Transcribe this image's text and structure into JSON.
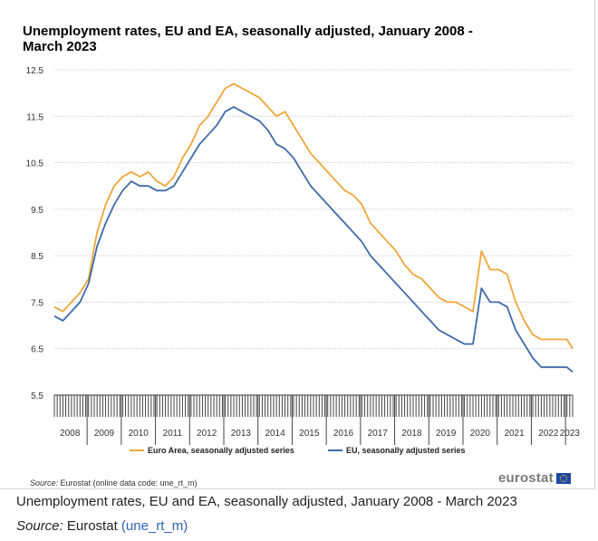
{
  "figure": {
    "title": "Unemployment rates, EU and EA, seasonally adjusted, January 2008 - March 2023",
    "source_label": "Source:",
    "source_text": "Eurostat (online data code: une_rt_m)",
    "logo_text": "eurostat",
    "flag_icon": "eu-flag-icon"
  },
  "caption": {
    "text": "Unemployment rates, EU and EA, seasonally adjusted, January 2008 - March 2023",
    "source_label": "Source:",
    "source_org": "Eurostat",
    "source_code": "une_rt_m"
  },
  "colors": {
    "ea": "#f0a639",
    "eu": "#3f6aa6",
    "grid": "#cccccc",
    "axis": "#333333"
  },
  "chart_data": {
    "type": "line",
    "title": "Unemployment rates, EU and EA, seasonally adjusted, January 2008 - March 2023",
    "ylim": [
      5.5,
      12.5
    ],
    "yticks": [
      "5.5",
      "6.5",
      "7.5",
      "8.5",
      "9.5",
      "10.5",
      "11.5",
      "12.5"
    ],
    "grid": true,
    "legend_position": "bottom",
    "x_start": "2008-01",
    "x_end": "2023-03",
    "year_labels": [
      "2008",
      "2009",
      "2010",
      "2011",
      "2012",
      "2013",
      "2014",
      "2015",
      "2016",
      "2017",
      "2018",
      "2019",
      "2020",
      "2021",
      "2022",
      "2023"
    ],
    "series": [
      {
        "name": "Euro Area, seasonally adjusted series",
        "points": [
          [
            "2008-01",
            7.4
          ],
          [
            "2008-04",
            7.3
          ],
          [
            "2008-07",
            7.5
          ],
          [
            "2008-10",
            7.7
          ],
          [
            "2009-01",
            8.0
          ],
          [
            "2009-04",
            9.0
          ],
          [
            "2009-07",
            9.6
          ],
          [
            "2009-10",
            10.0
          ],
          [
            "2010-01",
            10.2
          ],
          [
            "2010-04",
            10.3
          ],
          [
            "2010-07",
            10.2
          ],
          [
            "2010-10",
            10.3
          ],
          [
            "2011-01",
            10.1
          ],
          [
            "2011-04",
            10.0
          ],
          [
            "2011-07",
            10.2
          ],
          [
            "2011-10",
            10.6
          ],
          [
            "2012-01",
            10.9
          ],
          [
            "2012-04",
            11.3
          ],
          [
            "2012-07",
            11.5
          ],
          [
            "2012-10",
            11.8
          ],
          [
            "2013-01",
            12.1
          ],
          [
            "2013-04",
            12.2
          ],
          [
            "2013-07",
            12.1
          ],
          [
            "2013-10",
            12.0
          ],
          [
            "2014-01",
            11.9
          ],
          [
            "2014-04",
            11.7
          ],
          [
            "2014-07",
            11.5
          ],
          [
            "2014-10",
            11.6
          ],
          [
            "2015-01",
            11.3
          ],
          [
            "2015-04",
            11.0
          ],
          [
            "2015-07",
            10.7
          ],
          [
            "2015-10",
            10.5
          ],
          [
            "2016-01",
            10.3
          ],
          [
            "2016-04",
            10.1
          ],
          [
            "2016-07",
            9.9
          ],
          [
            "2016-10",
            9.8
          ],
          [
            "2017-01",
            9.6
          ],
          [
            "2017-04",
            9.2
          ],
          [
            "2017-07",
            9.0
          ],
          [
            "2017-10",
            8.8
          ],
          [
            "2018-01",
            8.6
          ],
          [
            "2018-04",
            8.3
          ],
          [
            "2018-07",
            8.1
          ],
          [
            "2018-10",
            8.0
          ],
          [
            "2019-01",
            7.8
          ],
          [
            "2019-04",
            7.6
          ],
          [
            "2019-07",
            7.5
          ],
          [
            "2019-10",
            7.5
          ],
          [
            "2020-01",
            7.4
          ],
          [
            "2020-04",
            7.3
          ],
          [
            "2020-07",
            8.6
          ],
          [
            "2020-10",
            8.2
          ],
          [
            "2021-01",
            8.2
          ],
          [
            "2021-04",
            8.1
          ],
          [
            "2021-07",
            7.5
          ],
          [
            "2021-10",
            7.1
          ],
          [
            "2022-01",
            6.8
          ],
          [
            "2022-04",
            6.7
          ],
          [
            "2022-07",
            6.7
          ],
          [
            "2022-10",
            6.7
          ],
          [
            "2023-01",
            6.7
          ],
          [
            "2023-03",
            6.5
          ]
        ]
      },
      {
        "name": "EU, seasonally adjusted series",
        "points": [
          [
            "2008-01",
            7.2
          ],
          [
            "2008-04",
            7.1
          ],
          [
            "2008-07",
            7.3
          ],
          [
            "2008-10",
            7.5
          ],
          [
            "2009-01",
            7.9
          ],
          [
            "2009-04",
            8.7
          ],
          [
            "2009-07",
            9.2
          ],
          [
            "2009-10",
            9.6
          ],
          [
            "2010-01",
            9.9
          ],
          [
            "2010-04",
            10.1
          ],
          [
            "2010-07",
            10.0
          ],
          [
            "2010-10",
            10.0
          ],
          [
            "2011-01",
            9.9
          ],
          [
            "2011-04",
            9.9
          ],
          [
            "2011-07",
            10.0
          ],
          [
            "2011-10",
            10.3
          ],
          [
            "2012-01",
            10.6
          ],
          [
            "2012-04",
            10.9
          ],
          [
            "2012-07",
            11.1
          ],
          [
            "2012-10",
            11.3
          ],
          [
            "2013-01",
            11.6
          ],
          [
            "2013-04",
            11.7
          ],
          [
            "2013-07",
            11.6
          ],
          [
            "2013-10",
            11.5
          ],
          [
            "2014-01",
            11.4
          ],
          [
            "2014-04",
            11.2
          ],
          [
            "2014-07",
            10.9
          ],
          [
            "2014-10",
            10.8
          ],
          [
            "2015-01",
            10.6
          ],
          [
            "2015-04",
            10.3
          ],
          [
            "2015-07",
            10.0
          ],
          [
            "2015-10",
            9.8
          ],
          [
            "2016-01",
            9.6
          ],
          [
            "2016-04",
            9.4
          ],
          [
            "2016-07",
            9.2
          ],
          [
            "2016-10",
            9.0
          ],
          [
            "2017-01",
            8.8
          ],
          [
            "2017-04",
            8.5
          ],
          [
            "2017-07",
            8.3
          ],
          [
            "2017-10",
            8.1
          ],
          [
            "2018-01",
            7.9
          ],
          [
            "2018-04",
            7.7
          ],
          [
            "2018-07",
            7.5
          ],
          [
            "2018-10",
            7.3
          ],
          [
            "2019-01",
            7.1
          ],
          [
            "2019-04",
            6.9
          ],
          [
            "2019-07",
            6.8
          ],
          [
            "2019-10",
            6.7
          ],
          [
            "2020-01",
            6.6
          ],
          [
            "2020-04",
            6.6
          ],
          [
            "2020-07",
            7.8
          ],
          [
            "2020-10",
            7.5
          ],
          [
            "2021-01",
            7.5
          ],
          [
            "2021-04",
            7.4
          ],
          [
            "2021-07",
            6.9
          ],
          [
            "2021-10",
            6.6
          ],
          [
            "2022-01",
            6.3
          ],
          [
            "2022-04",
            6.1
          ],
          [
            "2022-07",
            6.1
          ],
          [
            "2022-10",
            6.1
          ],
          [
            "2023-01",
            6.1
          ],
          [
            "2023-03",
            6.0
          ]
        ]
      }
    ]
  }
}
